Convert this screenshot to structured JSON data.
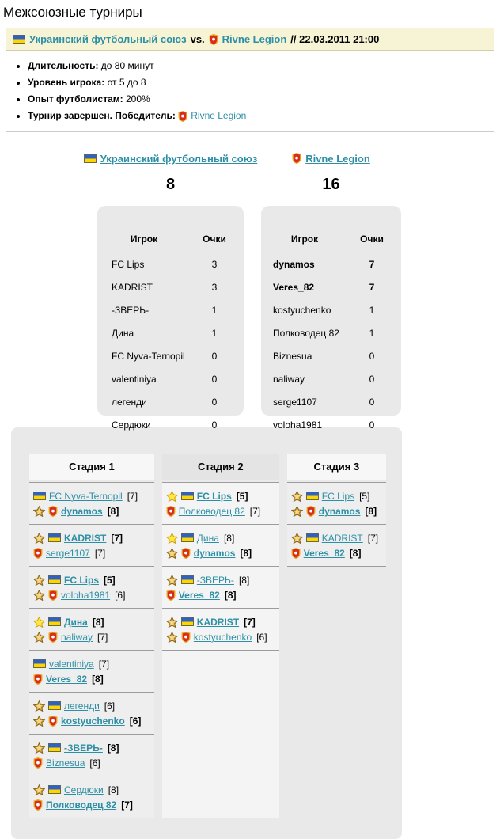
{
  "page_title": "Межсоюзные турниры",
  "banner": {
    "team1": "Украинский футбольный союз",
    "vs": "vs.",
    "team2": "Rivne Legion",
    "datetime": "// 22.03.2011 21:00"
  },
  "info": {
    "items": [
      {
        "label": "Длительность:",
        "value": "до 80 минут"
      },
      {
        "label": "Уровень игрока:",
        "value": "от 5 до 8"
      },
      {
        "label": "Опыт футболистам:",
        "value": "200%"
      },
      {
        "label": "Турнир завершен. Победитель:",
        "value": "",
        "winner": "Rivne Legion"
      }
    ]
  },
  "icons": {
    "team1": "ukraine-flag-icon",
    "team2": "rivne-legion-shield-icon",
    "gold_star": "gold-star-icon",
    "yellow_star": "yellow-star-icon"
  },
  "colors": {
    "link": "#2d8fa5",
    "banner_bg": "#f7f4d5",
    "panel_bg": "#e9e9e9"
  },
  "teams": [
    {
      "name": "Украинский футбольный союз",
      "score": "8"
    },
    {
      "name": "Rivne Legion",
      "score": "16"
    }
  ],
  "score_tables": [
    {
      "headers": {
        "player": "Игрок",
        "points": "Очки"
      },
      "rows": [
        {
          "player": "FC Lips",
          "points": "3",
          "bold": false
        },
        {
          "player": "KADRIST",
          "points": "3",
          "bold": false
        },
        {
          "player": "-ЗВЕРЬ-",
          "points": "1",
          "bold": false
        },
        {
          "player": "Дина",
          "points": "1",
          "bold": false
        },
        {
          "player": "FC Nyva-Ternopil",
          "points": "0",
          "bold": false
        },
        {
          "player": "valentiniya",
          "points": "0",
          "bold": false
        },
        {
          "player": "легенди",
          "points": "0",
          "bold": false
        },
        {
          "player": "Сердюки",
          "points": "0",
          "bold": false
        }
      ]
    },
    {
      "headers": {
        "player": "Игрок",
        "points": "Очки"
      },
      "rows": [
        {
          "player": "dynamos",
          "points": "7",
          "bold": true
        },
        {
          "player": "Veres_82",
          "points": "7",
          "bold": true
        },
        {
          "player": "kostyuchenko",
          "points": "1",
          "bold": false
        },
        {
          "player": "Полководец 82",
          "points": "1",
          "bold": false
        },
        {
          "player": "Biznesua",
          "points": "0",
          "bold": false
        },
        {
          "player": "naliway",
          "points": "0",
          "bold": false
        },
        {
          "player": "serge1107",
          "points": "0",
          "bold": false
        },
        {
          "player": "voloha1981",
          "points": "0",
          "bold": false
        }
      ]
    }
  ],
  "bracket": {
    "stages": [
      {
        "title": "Стадия 1",
        "matches": [
          {
            "p1": {
              "name": "FC Nyva-Ternopil",
              "score": "[7]",
              "team": 1,
              "star": null,
              "winner": false
            },
            "p2": {
              "name": "dynamos",
              "score": "[8]",
              "team": 2,
              "star": "gold",
              "winner": true
            }
          },
          {
            "p1": {
              "name": "KADRIST",
              "score": "[7]",
              "team": 1,
              "star": "gold",
              "winner": true
            },
            "p2": {
              "name": "serge1107",
              "score": "[7]",
              "team": 2,
              "star": null,
              "winner": false
            }
          },
          {
            "p1": {
              "name": "FC Lips",
              "score": "[5]",
              "team": 1,
              "star": "gold",
              "winner": true
            },
            "p2": {
              "name": "voloha1981",
              "score": "[6]",
              "team": 2,
              "star": "gold",
              "winner": false
            }
          },
          {
            "p1": {
              "name": "Дина",
              "score": "[8]",
              "team": 1,
              "star": "yellow",
              "winner": true
            },
            "p2": {
              "name": "naliway",
              "score": "[7]",
              "team": 2,
              "star": "gold",
              "winner": false
            }
          },
          {
            "p1": {
              "name": "valentiniya",
              "score": "[7]",
              "team": 1,
              "star": null,
              "winner": false
            },
            "p2": {
              "name": "Veres_82",
              "score": "[8]",
              "team": 2,
              "star": null,
              "winner": true
            }
          },
          {
            "p1": {
              "name": "легенди",
              "score": "[6]",
              "team": 1,
              "star": "gold",
              "winner": false
            },
            "p2": {
              "name": "kostyuchenko",
              "score": "[6]",
              "team": 2,
              "star": "gold",
              "winner": true
            }
          },
          {
            "p1": {
              "name": "-ЗВЕРЬ-",
              "score": "[8]",
              "team": 1,
              "star": "gold",
              "winner": true
            },
            "p2": {
              "name": "Biznesua",
              "score": "[6]",
              "team": 2,
              "star": null,
              "winner": false
            }
          },
          {
            "p1": {
              "name": "Сердюки",
              "score": "[8]",
              "team": 1,
              "star": "gold",
              "winner": false
            },
            "p2": {
              "name": "Полководец 82",
              "score": "[7]",
              "team": 2,
              "star": null,
              "winner": true
            }
          }
        ]
      },
      {
        "title": "Стадия 2",
        "matches": [
          {
            "p1": {
              "name": "FC Lips",
              "score": "[5]",
              "team": 1,
              "star": "yellow",
              "winner": true
            },
            "p2": {
              "name": "Полководец 82",
              "score": "[7]",
              "team": 2,
              "star": null,
              "winner": false
            }
          },
          {
            "p1": {
              "name": "Дина",
              "score": "[8]",
              "team": 1,
              "star": "yellow",
              "winner": false
            },
            "p2": {
              "name": "dynamos",
              "score": "[8]",
              "team": 2,
              "star": "gold",
              "winner": true
            }
          },
          {
            "p1": {
              "name": "-ЗВЕРЬ-",
              "score": "[8]",
              "team": 1,
              "star": "gold",
              "winner": false
            },
            "p2": {
              "name": "Veres_82",
              "score": "[8]",
              "team": 2,
              "star": null,
              "winner": true
            }
          },
          {
            "p1": {
              "name": "KADRIST",
              "score": "[7]",
              "team": 1,
              "star": "gold",
              "winner": true
            },
            "p2": {
              "name": "kostyuchenko",
              "score": "[6]",
              "team": 2,
              "star": "gold",
              "winner": false
            }
          }
        ]
      },
      {
        "title": "Стадия 3",
        "matches": [
          {
            "p1": {
              "name": "FC Lips",
              "score": "[5]",
              "team": 1,
              "star": "gold",
              "winner": false
            },
            "p2": {
              "name": "dynamos",
              "score": "[8]",
              "team": 2,
              "star": "gold",
              "winner": true
            }
          },
          {
            "p1": {
              "name": "KADRIST",
              "score": "[7]",
              "team": 1,
              "star": "gold",
              "winner": false
            },
            "p2": {
              "name": "Veres_82",
              "score": "[8]",
              "team": 2,
              "star": null,
              "winner": true
            }
          }
        ]
      }
    ]
  }
}
